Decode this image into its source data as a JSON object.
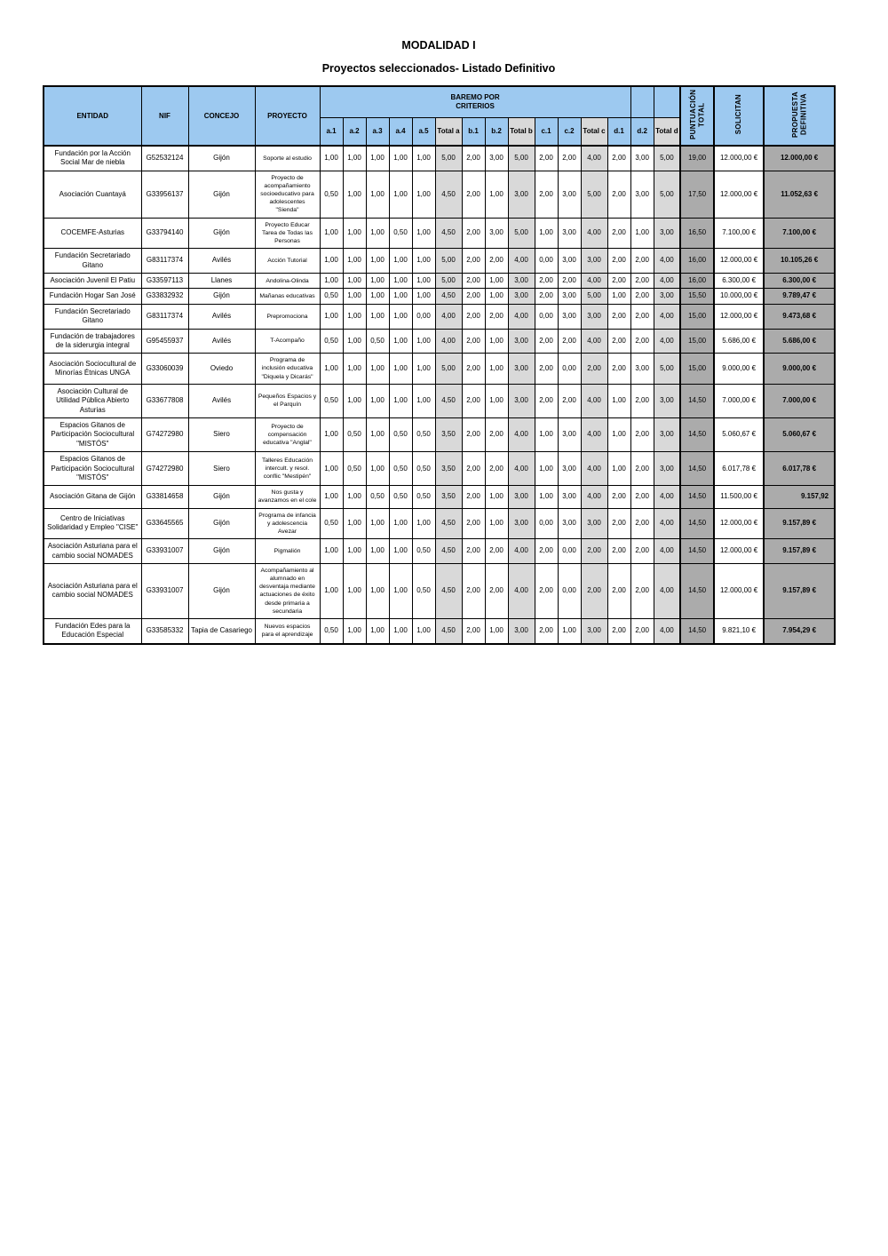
{
  "page": {
    "title": "MODALIDAD I",
    "subtitle": "Proyectos seleccionados- Listado Definitivo"
  },
  "colors": {
    "header_blue": "#9DC9F0",
    "total_column_gray": "#D9D9D9",
    "score_column_gray": "#ABABAB",
    "border_black": "#000000"
  },
  "table": {
    "headers": {
      "entidad": "ENTIDAD",
      "nif": "NIF",
      "concejo": "CONCEJO",
      "proyecto": "PROYECTO",
      "baremo": "BAREMO POR CRITERIOS",
      "criteria": [
        "a.1",
        "a.2",
        "a.3",
        "a.4",
        "a.5",
        "Total a",
        "b.1",
        "b.2",
        "Total b",
        "c.1",
        "c.2",
        "Total c",
        "d.1",
        "d.2",
        "Total d"
      ],
      "puntuacion": "PUNTUACIÓN TOTAL",
      "solicitan": "SOLICITAN",
      "propuesta": "PROPUESTA DEFINITIVA"
    },
    "rows": [
      {
        "entidad": "Fundación por la Acción Social Mar de niebla",
        "nif": "G52532124",
        "concejo": "Gijón",
        "proyecto": "Soporte al estudio",
        "scores": [
          "1,00",
          "1,00",
          "1,00",
          "1,00",
          "1,00",
          "5,00",
          "2,00",
          "3,00",
          "5,00",
          "2,00",
          "2,00",
          "4,00",
          "2,00",
          "3,00",
          "5,00"
        ],
        "puntuacion": "19,00",
        "solicitan": "12.000,00 €",
        "propuesta": "12.000,00 €"
      },
      {
        "entidad": "Asociación Cuantayá",
        "nif": "G33956137",
        "concejo": "Gijón",
        "proyecto": "Proyecto de acompañamiento socioeducativo para adolescentes \"Sienda\"",
        "scores": [
          "0,50",
          "1,00",
          "1,00",
          "1,00",
          "1,00",
          "4,50",
          "2,00",
          "1,00",
          "3,00",
          "2,00",
          "3,00",
          "5,00",
          "2,00",
          "3,00",
          "5,00"
        ],
        "puntuacion": "17,50",
        "solicitan": "12.000,00 €",
        "propuesta": "11.052,63 €"
      },
      {
        "entidad": "COCEMFE-Asturias",
        "nif": "G33794140",
        "concejo": "Gijón",
        "proyecto": "Proyecto Educar Tarea de Todas las Personas",
        "scores": [
          "1,00",
          "1,00",
          "1,00",
          "0,50",
          "1,00",
          "4,50",
          "2,00",
          "3,00",
          "5,00",
          "1,00",
          "3,00",
          "4,00",
          "2,00",
          "1,00",
          "3,00"
        ],
        "puntuacion": "16,50",
        "solicitan": "7.100,00 €",
        "propuesta": "7.100,00 €"
      },
      {
        "entidad": "Fundación Secretariado Gitano",
        "nif": "G83117374",
        "concejo": "Avilés",
        "proyecto": "Acción Tutorial",
        "scores": [
          "1,00",
          "1,00",
          "1,00",
          "1,00",
          "1,00",
          "5,00",
          "2,00",
          "2,00",
          "4,00",
          "0,00",
          "3,00",
          "3,00",
          "2,00",
          "2,00",
          "4,00"
        ],
        "puntuacion": "16,00",
        "solicitan": "12.000,00 €",
        "propuesta": "10.105,26 €"
      },
      {
        "entidad": "Asociación Juvenil El Patiu",
        "nif": "G33597113",
        "concejo": "Llanes",
        "proyecto": "Andolina-Olinda",
        "scores": [
          "1,00",
          "1,00",
          "1,00",
          "1,00",
          "1,00",
          "5,00",
          "2,00",
          "1,00",
          "3,00",
          "2,00",
          "2,00",
          "4,00",
          "2,00",
          "2,00",
          "4,00"
        ],
        "puntuacion": "16,00",
        "solicitan": "6.300,00 €",
        "propuesta": "6.300,00 €"
      },
      {
        "entidad": "Fundación Hogar San José",
        "nif": "G33832932",
        "concejo": "Gijón",
        "proyecto": "Mañanas educativas",
        "scores": [
          "0,50",
          "1,00",
          "1,00",
          "1,00",
          "1,00",
          "4,50",
          "2,00",
          "1,00",
          "3,00",
          "2,00",
          "3,00",
          "5,00",
          "1,00",
          "2,00",
          "3,00"
        ],
        "puntuacion": "15,50",
        "solicitan": "10.000,00 €",
        "propuesta": "9.789,47 €"
      },
      {
        "entidad": "Fundación Secretariado Gitano",
        "nif": "G83117374",
        "concejo": "Avilés",
        "proyecto": "Prepromociona",
        "scores": [
          "1,00",
          "1,00",
          "1,00",
          "1,00",
          "0,00",
          "4,00",
          "2,00",
          "2,00",
          "4,00",
          "0,00",
          "3,00",
          "3,00",
          "2,00",
          "2,00",
          "4,00"
        ],
        "puntuacion": "15,00",
        "solicitan": "12.000,00 €",
        "propuesta": "9.473,68 €"
      },
      {
        "entidad": "Fundación de trabajadores de la siderurgia integral",
        "nif": "G95455937",
        "concejo": "Avilés",
        "proyecto": "T-Acompaño",
        "scores": [
          "0,50",
          "1,00",
          "0,50",
          "1,00",
          "1,00",
          "4,00",
          "2,00",
          "1,00",
          "3,00",
          "2,00",
          "2,00",
          "4,00",
          "2,00",
          "2,00",
          "4,00"
        ],
        "puntuacion": "15,00",
        "solicitan": "5.686,00 €",
        "propuesta": "5.686,00 €"
      },
      {
        "entidad": "Asociación Sociocultural de Minorías Étnicas UNGA",
        "nif": "G33060039",
        "concejo": "Oviedo",
        "proyecto": "Programa de inclusión educativa \"Diquela y Dicarás\"",
        "scores": [
          "1,00",
          "1,00",
          "1,00",
          "1,00",
          "1,00",
          "5,00",
          "2,00",
          "1,00",
          "3,00",
          "2,00",
          "0,00",
          "2,00",
          "2,00",
          "3,00",
          "5,00"
        ],
        "puntuacion": "15,00",
        "solicitan": "9.000,00 €",
        "propuesta": "9.000,00 €"
      },
      {
        "entidad": "Asociación Cultural de Utilidad Pública Abierto Asturias",
        "nif": "G33677808",
        "concejo": "Avilés",
        "proyecto": "Pequeños Espacios y el Parquín",
        "scores": [
          "0,50",
          "1,00",
          "1,00",
          "1,00",
          "1,00",
          "4,50",
          "2,00",
          "1,00",
          "3,00",
          "2,00",
          "2,00",
          "4,00",
          "1,00",
          "2,00",
          "3,00"
        ],
        "puntuacion": "14,50",
        "solicitan": "7.000,00 €",
        "propuesta": "7.000,00 €"
      },
      {
        "entidad": "Espacios Gitanos de Participación Sociocultural \"MISTÓS\"",
        "nif": "G74272980",
        "concejo": "Siero",
        "proyecto": "Proyecto de compensación educativa \"Anglal\"",
        "scores": [
          "1,00",
          "0,50",
          "1,00",
          "0,50",
          "0,50",
          "3,50",
          "2,00",
          "2,00",
          "4,00",
          "1,00",
          "3,00",
          "4,00",
          "1,00",
          "2,00",
          "3,00"
        ],
        "puntuacion": "14,50",
        "solicitan": "5.060,67 €",
        "propuesta": "5.060,67 €"
      },
      {
        "entidad": "Espacios Gitanos de Participación Sociocultural \"MISTÓS\"",
        "nif": "G74272980",
        "concejo": "Siero",
        "proyecto": "Talleres Educación intercult. y resol. conflic \"Mestipén\"",
        "scores": [
          "1,00",
          "0,50",
          "1,00",
          "0,50",
          "0,50",
          "3,50",
          "2,00",
          "2,00",
          "4,00",
          "1,00",
          "3,00",
          "4,00",
          "1,00",
          "2,00",
          "3,00"
        ],
        "puntuacion": "14,50",
        "solicitan": "6.017,78 €",
        "propuesta": "6.017,78 €"
      },
      {
        "entidad": "Asociación Gitana de Gijón",
        "nif": "G33814658",
        "concejo": "Gijón",
        "proyecto": "Nos gusta y avanzamos en el cole",
        "scores": [
          "1,00",
          "1,00",
          "0,50",
          "0,50",
          "0,50",
          "3,50",
          "2,00",
          "1,00",
          "3,00",
          "1,00",
          "3,00",
          "4,00",
          "2,00",
          "2,00",
          "4,00"
        ],
        "puntuacion": "14,50",
        "solicitan": "11.500,00 €",
        "propuesta": "9.157,92",
        "propuesta_align": "right"
      },
      {
        "entidad": "Centro de Iniciativas Solidaridad y Empleo \"CISE\"",
        "nif": "G33645565",
        "concejo": "Gijón",
        "proyecto": "Programa de infancia y adolescencia Avezar",
        "scores": [
          "0,50",
          "1,00",
          "1,00",
          "1,00",
          "1,00",
          "4,50",
          "2,00",
          "1,00",
          "3,00",
          "0,00",
          "3,00",
          "3,00",
          "2,00",
          "2,00",
          "4,00"
        ],
        "puntuacion": "14,50",
        "solicitan": "12.000,00 €",
        "propuesta": "9.157,89 €"
      },
      {
        "entidad": "Asociación Asturiana para el cambio social NOMADES",
        "nif": "G33931007",
        "concejo": "Gijón",
        "proyecto": "Pigmalión",
        "scores": [
          "1,00",
          "1,00",
          "1,00",
          "1,00",
          "0,50",
          "4,50",
          "2,00",
          "2,00",
          "4,00",
          "2,00",
          "0,00",
          "2,00",
          "2,00",
          "2,00",
          "4,00"
        ],
        "puntuacion": "14,50",
        "solicitan": "12.000,00 €",
        "propuesta": "9.157,89 €"
      },
      {
        "entidad": "Asociación Asturiana para el cambio social NOMADES",
        "nif": "G33931007",
        "concejo": "Gijón",
        "proyecto": "Acompañamiento al alumnado en desventaja mediante actuaciones de éxito desde primaria a secundaria",
        "scores": [
          "1,00",
          "1,00",
          "1,00",
          "1,00",
          "0,50",
          "4,50",
          "2,00",
          "2,00",
          "4,00",
          "2,00",
          "0,00",
          "2,00",
          "2,00",
          "2,00",
          "4,00"
        ],
        "puntuacion": "14,50",
        "solicitan": "12.000,00 €",
        "propuesta": "9.157,89 €"
      },
      {
        "entidad": "Fundación Edes para la Educación Especial",
        "nif": "G33585332",
        "concejo": "Tapia de Casariego",
        "proyecto": "Nuevos espacios para el aprendizaje",
        "scores": [
          "0,50",
          "1,00",
          "1,00",
          "1,00",
          "1,00",
          "4,50",
          "2,00",
          "1,00",
          "3,00",
          "2,00",
          "1,00",
          "3,00",
          "2,00",
          "2,00",
          "4,00"
        ],
        "puntuacion": "14,50",
        "solicitan": "9.821,10 €",
        "propuesta": "7.954,29 €"
      }
    ]
  }
}
